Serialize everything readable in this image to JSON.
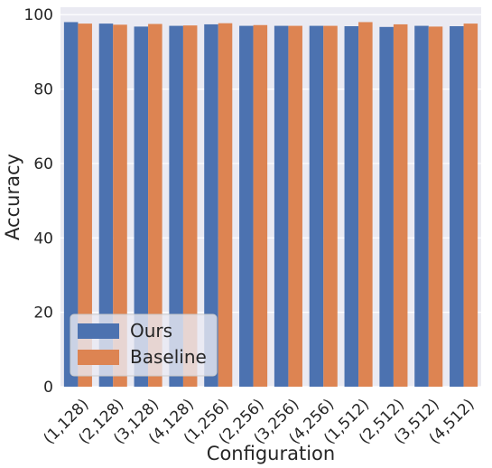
{
  "chart_data": {
    "type": "bar",
    "xlabel": "Configuration",
    "ylabel": "Accuracy",
    "ylim": [
      0,
      102
    ],
    "yticks": [
      0,
      20,
      40,
      60,
      80,
      100
    ],
    "grid": true,
    "legend_position": "lower-left",
    "categories": [
      "(1,128)",
      "(2,128)",
      "(3,128)",
      "(4,128)",
      "(1,256)",
      "(2,256)",
      "(3,256)",
      "(4,256)",
      "(1,512)",
      "(2,512)",
      "(3,512)",
      "(4,512)"
    ],
    "series": [
      {
        "name": "Ours",
        "color": "#4c72b0",
        "values": [
          98.0,
          97.6,
          96.8,
          97.0,
          97.4,
          97.0,
          97.0,
          97.0,
          96.9,
          96.7,
          97.0,
          96.9
        ]
      },
      {
        "name": "Baseline",
        "color": "#dd8452",
        "values": [
          97.6,
          97.3,
          97.5,
          97.1,
          97.7,
          97.2,
          97.0,
          97.0,
          98.0,
          97.4,
          96.8,
          97.6
        ]
      }
    ],
    "background_color": "#eaeaf2"
  }
}
